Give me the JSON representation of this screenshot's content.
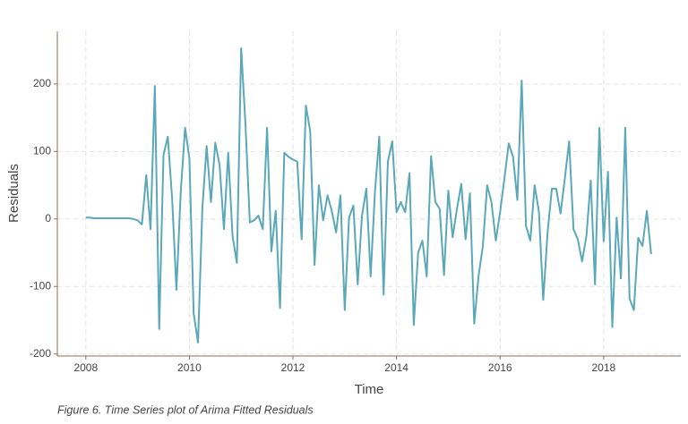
{
  "chart_data": {
    "type": "line",
    "x_label": "Time",
    "y_label": "Residuals",
    "caption": "Figure 6. Time Series plot of Arima Fitted Residuals",
    "xlim": [
      2007.45,
      2019.49
    ],
    "ylim": [
      -203,
      278
    ],
    "xticks": [
      2008,
      2010,
      2012,
      2014,
      2016,
      2018
    ],
    "yticks": [
      -200,
      -100,
      0,
      100,
      200
    ],
    "grid": true,
    "x": [
      2008,
      2008.083,
      2008.167,
      2008.25,
      2008.333,
      2008.417,
      2008.5,
      2008.583,
      2008.667,
      2008.75,
      2008.833,
      2008.917,
      2009,
      2009.083,
      2009.167,
      2009.25,
      2009.333,
      2009.417,
      2009.5,
      2009.583,
      2009.667,
      2009.75,
      2009.833,
      2009.917,
      2010,
      2010.083,
      2010.167,
      2010.25,
      2010.333,
      2010.417,
      2010.5,
      2010.583,
      2010.667,
      2010.75,
      2010.833,
      2010.917,
      2011,
      2011.083,
      2011.167,
      2011.25,
      2011.333,
      2011.417,
      2011.5,
      2011.583,
      2011.667,
      2011.75,
      2011.833,
      2011.917,
      2012,
      2012.083,
      2012.167,
      2012.25,
      2012.333,
      2012.417,
      2012.5,
      2012.583,
      2012.667,
      2012.75,
      2012.833,
      2012.917,
      2013,
      2013.083,
      2013.167,
      2013.25,
      2013.333,
      2013.417,
      2013.5,
      2013.583,
      2013.667,
      2013.75,
      2013.833,
      2013.917,
      2014,
      2014.083,
      2014.167,
      2014.25,
      2014.333,
      2014.417,
      2014.5,
      2014.583,
      2014.667,
      2014.75,
      2014.833,
      2014.917,
      2015,
      2015.083,
      2015.167,
      2015.25,
      2015.333,
      2015.417,
      2015.5,
      2015.583,
      2015.667,
      2015.75,
      2015.833,
      2015.917,
      2016,
      2016.083,
      2016.167,
      2016.25,
      2016.333,
      2016.417,
      2016.5,
      2016.583,
      2016.667,
      2016.75,
      2016.833,
      2016.917,
      2017,
      2017.083,
      2017.167,
      2017.25,
      2017.333,
      2017.417,
      2017.5,
      2017.583,
      2017.667,
      2017.75,
      2017.833,
      2017.917,
      2018,
      2018.083,
      2018.167,
      2018.25,
      2018.333,
      2018.417,
      2018.5,
      2018.583,
      2018.667,
      2018.75,
      2018.833,
      2018.917
    ],
    "series": [
      {
        "color": "#5aa8b8",
        "values": [
          2,
          2,
          1,
          1,
          1,
          1,
          1,
          1,
          1,
          1,
          1,
          0,
          -2,
          -8,
          65,
          -15,
          197,
          -163,
          95,
          122,
          30,
          -105,
          40,
          135,
          90,
          -140,
          -183,
          15,
          108,
          25,
          113,
          80,
          -15,
          98,
          -25,
          -65,
          253,
          140,
          -5,
          -2,
          5,
          -15,
          135,
          -48,
          12,
          -132,
          98,
          92,
          88,
          85,
          -30,
          168,
          130,
          -68,
          50,
          -2,
          35,
          12,
          -20,
          35,
          -135,
          2,
          20,
          -97,
          5,
          45,
          -85,
          40,
          122,
          -112,
          85,
          115,
          10,
          25,
          10,
          68,
          -157,
          -50,
          -32,
          -85,
          93,
          25,
          15,
          -83,
          42,
          -27,
          15,
          52,
          -30,
          38,
          -155,
          -85,
          -40,
          50,
          25,
          -32,
          10,
          60,
          112,
          92,
          28,
          205,
          -10,
          -32,
          50,
          10,
          -120,
          -20,
          45,
          45,
          8,
          60,
          115,
          -15,
          -30,
          -63,
          -25,
          57,
          -97,
          135,
          -33,
          70,
          -160,
          2,
          -88,
          135,
          -118,
          -135,
          -28,
          -40,
          12,
          -52
        ]
      }
    ]
  }
}
